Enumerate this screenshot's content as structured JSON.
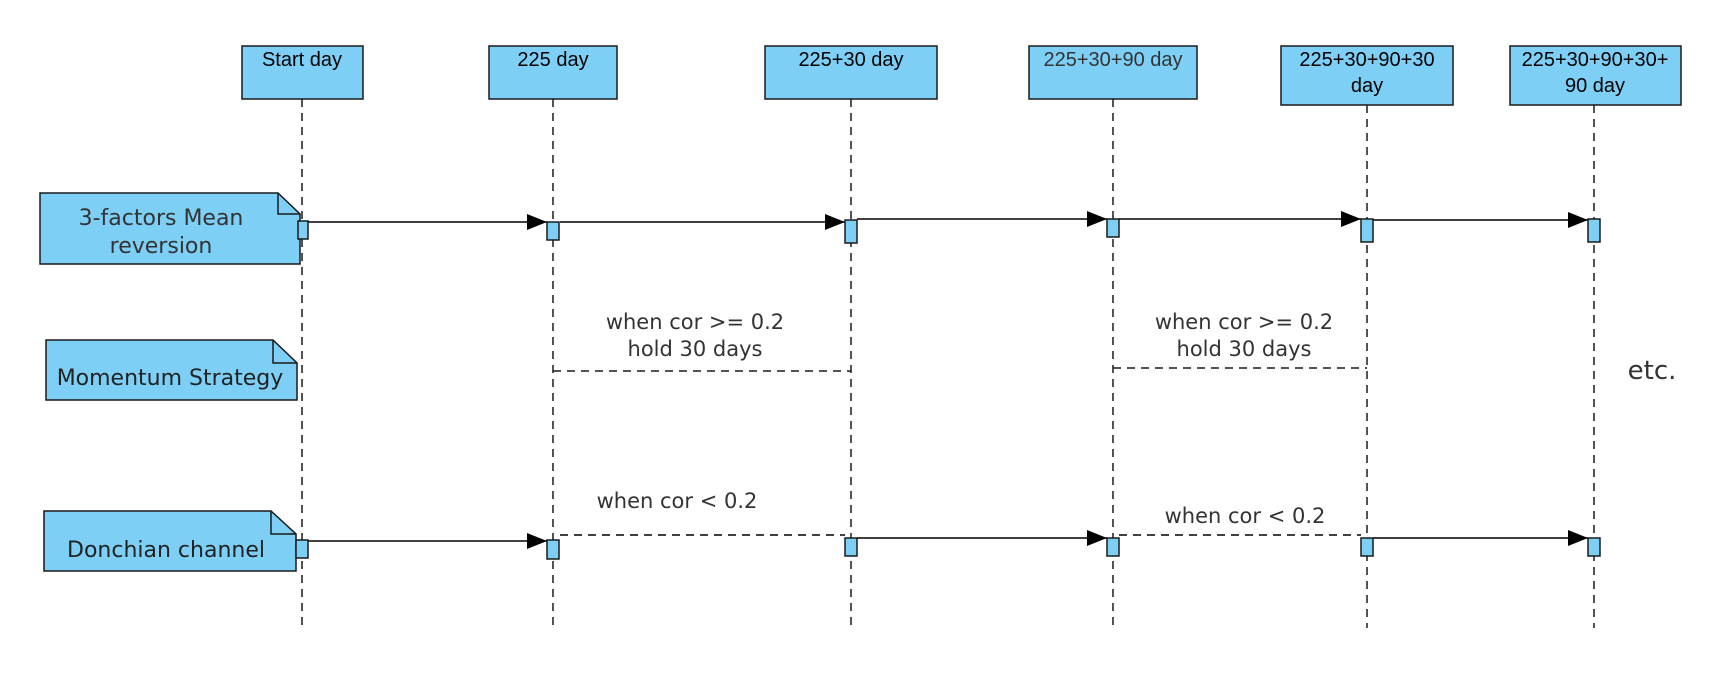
{
  "colors": {
    "fill": "#7dcff5",
    "stroke": "#1a1a1a",
    "text": "#333333",
    "line": "#000000"
  },
  "lifelines": [
    {
      "id": "start",
      "lines": [
        "Start day"
      ]
    },
    {
      "id": "d225",
      "lines": [
        "225 day"
      ]
    },
    {
      "id": "d255",
      "lines": [
        "225+30 day"
      ]
    },
    {
      "id": "d345",
      "lines": [
        "225+30+90 day"
      ]
    },
    {
      "id": "d375",
      "lines": [
        "225+30+90+30",
        "day"
      ]
    },
    {
      "id": "d465",
      "lines": [
        "225+30+90+30+",
        "90 day"
      ]
    }
  ],
  "notes": {
    "mean_reversion": [
      "3-factors Mean",
      "reversion"
    ],
    "momentum": [
      "Momentum Strategy"
    ],
    "donchian": [
      "Donchian channel"
    ]
  },
  "labels": {
    "momentum_1": [
      "when cor >= 0.2",
      "hold 30 days"
    ],
    "momentum_2": [
      "when cor >= 0.2",
      "hold 30 days"
    ],
    "donchian_1": [
      "when cor < 0.2"
    ],
    "donchian_2": [
      "when cor < 0.2"
    ]
  },
  "etc": "etc."
}
